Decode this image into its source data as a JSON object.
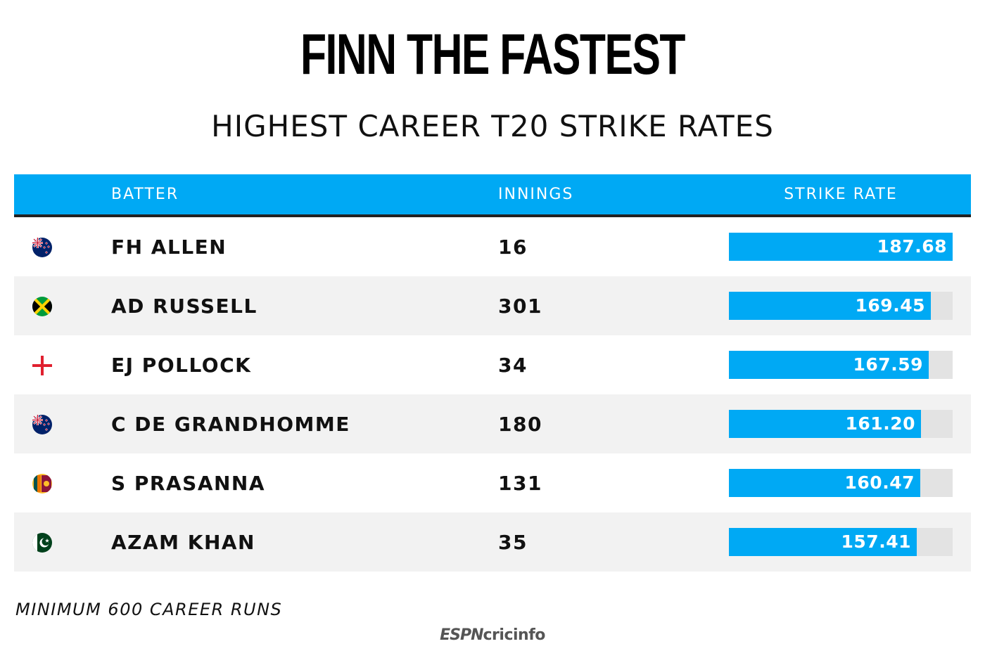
{
  "title": "FINN THE FASTEST",
  "subtitle": "HIGHEST CAREER T20 STRIKE RATES",
  "header": {
    "batter": "BATTER",
    "innings": "INNINGS",
    "strike_rate": "STRIKE RATE"
  },
  "footnote": "MINIMUM 600 CAREER RUNS",
  "logo": {
    "part1": "ESPN",
    "part2": "cricinfo"
  },
  "colors": {
    "accent": "#00a9f4",
    "bar_track": "#e3e3e3",
    "row_alt": "#f2f2f2"
  },
  "chart_data": {
    "type": "table",
    "title": "FINN THE FASTEST",
    "subtitle": "HIGHEST CAREER T20 STRIKE RATES",
    "columns": [
      "BATTER",
      "INNINGS",
      "STRIKE RATE"
    ],
    "bar_max": 187.68,
    "rows": [
      {
        "flag": "new-zealand-flag-icon",
        "batter": "FH ALLEN",
        "innings": "16",
        "strike_rate": 187.68,
        "strike_rate_label": "187.68"
      },
      {
        "flag": "jamaica-flag-icon",
        "batter": "AD RUSSELL",
        "innings": "301",
        "strike_rate": 169.45,
        "strike_rate_label": "169.45"
      },
      {
        "flag": "england-flag-icon",
        "batter": "EJ POLLOCK",
        "innings": "34",
        "strike_rate": 167.59,
        "strike_rate_label": "167.59"
      },
      {
        "flag": "new-zealand-flag-icon",
        "batter": "C DE GRANDHOMME",
        "innings": "180",
        "strike_rate": 161.2,
        "strike_rate_label": "161.20"
      },
      {
        "flag": "sri-lanka-flag-icon",
        "batter": "S PRASANNA",
        "innings": "131",
        "strike_rate": 160.47,
        "strike_rate_label": "160.47"
      },
      {
        "flag": "pakistan-flag-icon",
        "batter": "AZAM KHAN",
        "innings": "35",
        "strike_rate": 157.41,
        "strike_rate_label": "157.41"
      }
    ]
  }
}
